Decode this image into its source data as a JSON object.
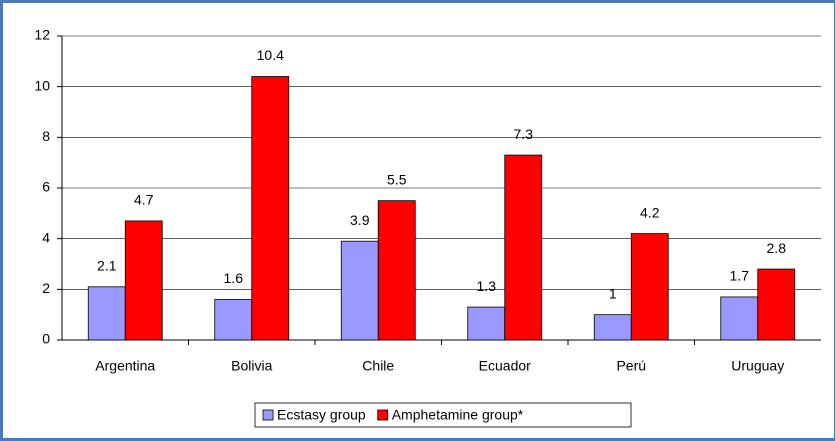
{
  "chart_data": {
    "type": "bar",
    "categories": [
      "Argentina",
      "Bolivia",
      "Chile",
      "Ecuador",
      "Perú",
      "Uruguay"
    ],
    "series": [
      {
        "name": "Ecstasy group",
        "color": "#9999ff",
        "values": [
          2.1,
          1.6,
          3.9,
          1.3,
          1,
          1.7
        ]
      },
      {
        "name": "Amphetamine group*",
        "color": "#ff0000",
        "values": [
          4.7,
          10.4,
          5.5,
          7.3,
          4.2,
          2.8
        ]
      }
    ],
    "ylim": [
      0,
      12
    ],
    "yticks": [
      0,
      2,
      4,
      6,
      8,
      10,
      12
    ],
    "grid": true,
    "legend": "bottom"
  }
}
